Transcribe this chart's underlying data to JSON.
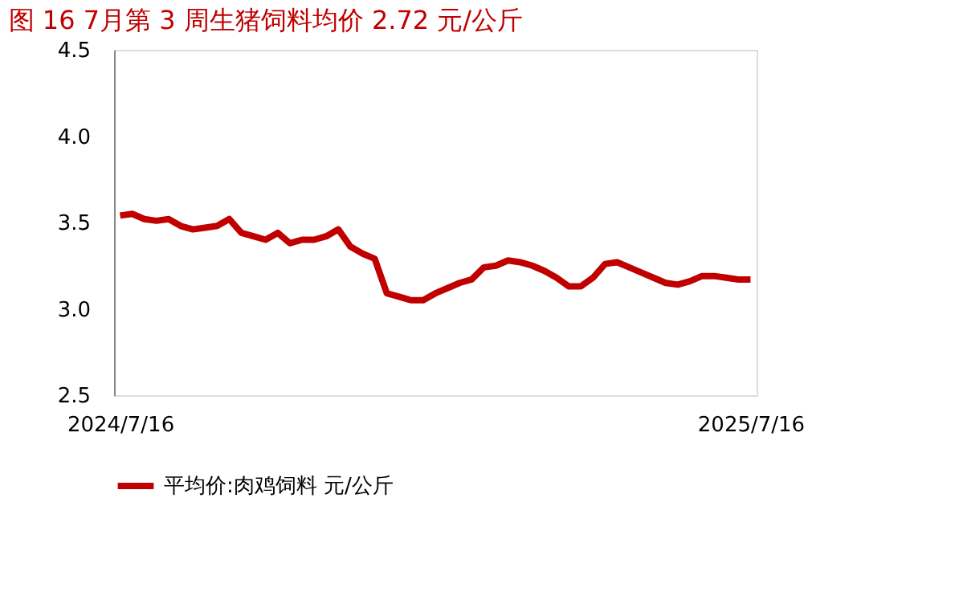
{
  "chart_data": {
    "type": "line",
    "title": "图 16 7月第 3 周生猪饲料均价 2.72 元/公斤",
    "categories": [
      "2024/7/16",
      null,
      null,
      null,
      null,
      null,
      null,
      null,
      null,
      null,
      null,
      null,
      null,
      null,
      null,
      null,
      null,
      null,
      null,
      null,
      null,
      null,
      null,
      null,
      null,
      null,
      null,
      null,
      null,
      null,
      null,
      null,
      null,
      null,
      null,
      null,
      null,
      null,
      null,
      null,
      null,
      null,
      null,
      null,
      null,
      null,
      null,
      null,
      null,
      null,
      null,
      null,
      "2025/7/16"
    ],
    "series": [
      {
        "name": "平均价:肉鸡饲料 元/公斤",
        "color": "#c00000",
        "values": [
          3.54,
          3.55,
          3.52,
          3.51,
          3.52,
          3.48,
          3.46,
          3.47,
          3.48,
          3.52,
          3.44,
          3.42,
          3.4,
          3.44,
          3.38,
          3.4,
          3.4,
          3.42,
          3.46,
          3.36,
          3.32,
          3.29,
          3.09,
          3.07,
          3.05,
          3.05,
          3.09,
          3.12,
          3.15,
          3.17,
          3.24,
          3.25,
          3.28,
          3.27,
          3.25,
          3.22,
          3.18,
          3.13,
          3.13,
          3.18,
          3.26,
          3.27,
          3.24,
          3.21,
          3.18,
          3.15,
          3.14,
          3.16,
          3.19,
          3.19,
          3.18,
          3.17,
          3.17
        ]
      }
    ],
    "ylim": [
      2.5,
      4.5
    ],
    "yticks": [
      {
        "value": 2.5,
        "label": "2.5"
      },
      {
        "value": 3.0,
        "label": "3.0"
      },
      {
        "value": 3.5,
        "label": "3.5"
      },
      {
        "value": 4.0,
        "label": "4.0"
      },
      {
        "value": 4.5,
        "label": "4.5"
      }
    ],
    "grid": false,
    "legend": "bottom",
    "marker": "none",
    "line_style": "solid"
  }
}
